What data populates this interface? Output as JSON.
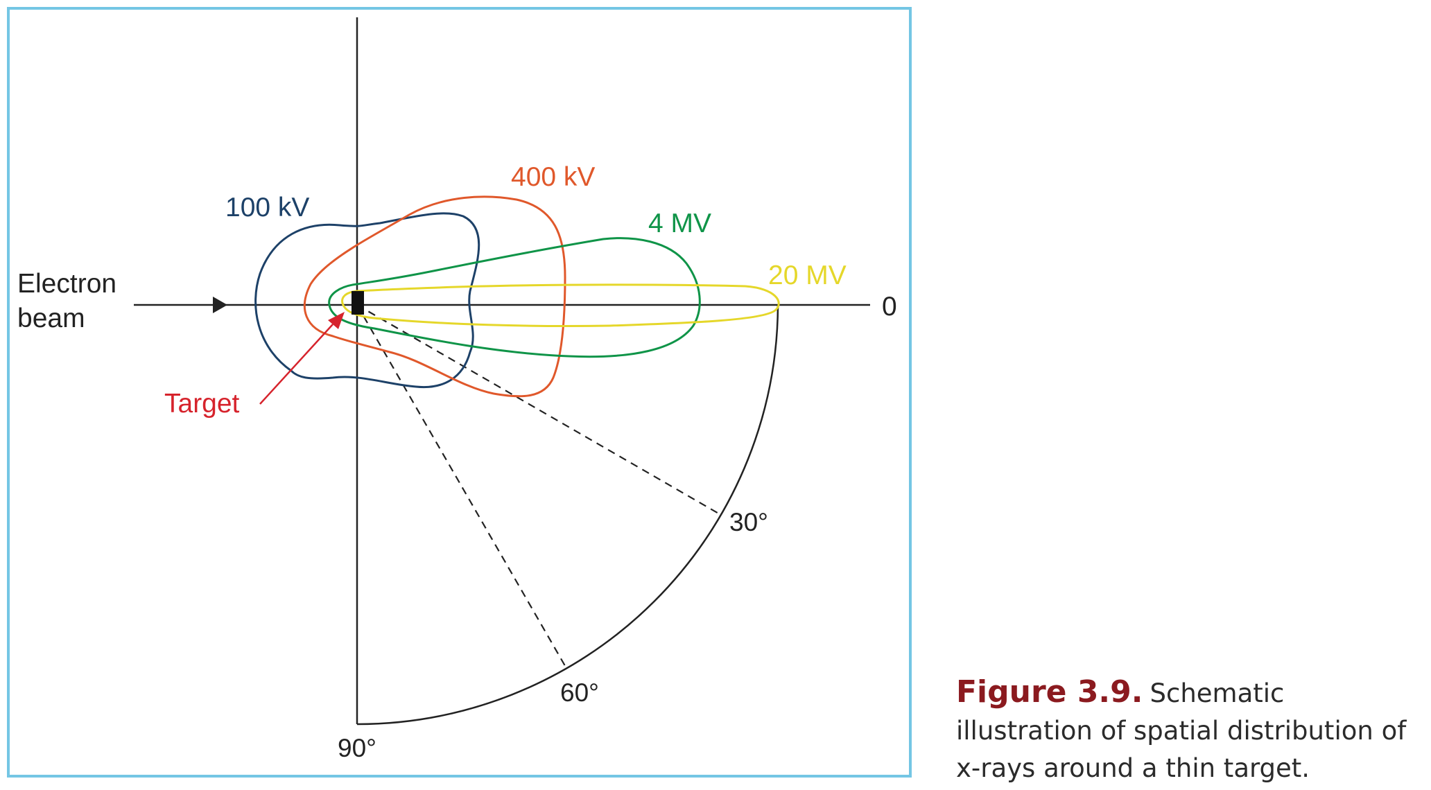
{
  "diagram": {
    "beam_label_line1": "Electron",
    "beam_label_line2": "beam",
    "target_label": "Target",
    "axis_zero_label": "0",
    "angle_labels": {
      "deg30": "30°",
      "deg60": "60°",
      "deg90": "90°"
    },
    "curves": [
      {
        "label": "100 kV",
        "color": "#1d4168"
      },
      {
        "label": "400 kV",
        "color": "#e0582b"
      },
      {
        "label": "4 MV",
        "color": "#0f9448"
      },
      {
        "label": "20 MV",
        "color": "#e5d72a"
      }
    ],
    "target_label_color": "#d6232c",
    "frame_color": "#74c6e4"
  },
  "caption": {
    "label": "Figure 3.9.",
    "text": "Schematic illustration of spatial distribution of x-rays around a thin target."
  }
}
